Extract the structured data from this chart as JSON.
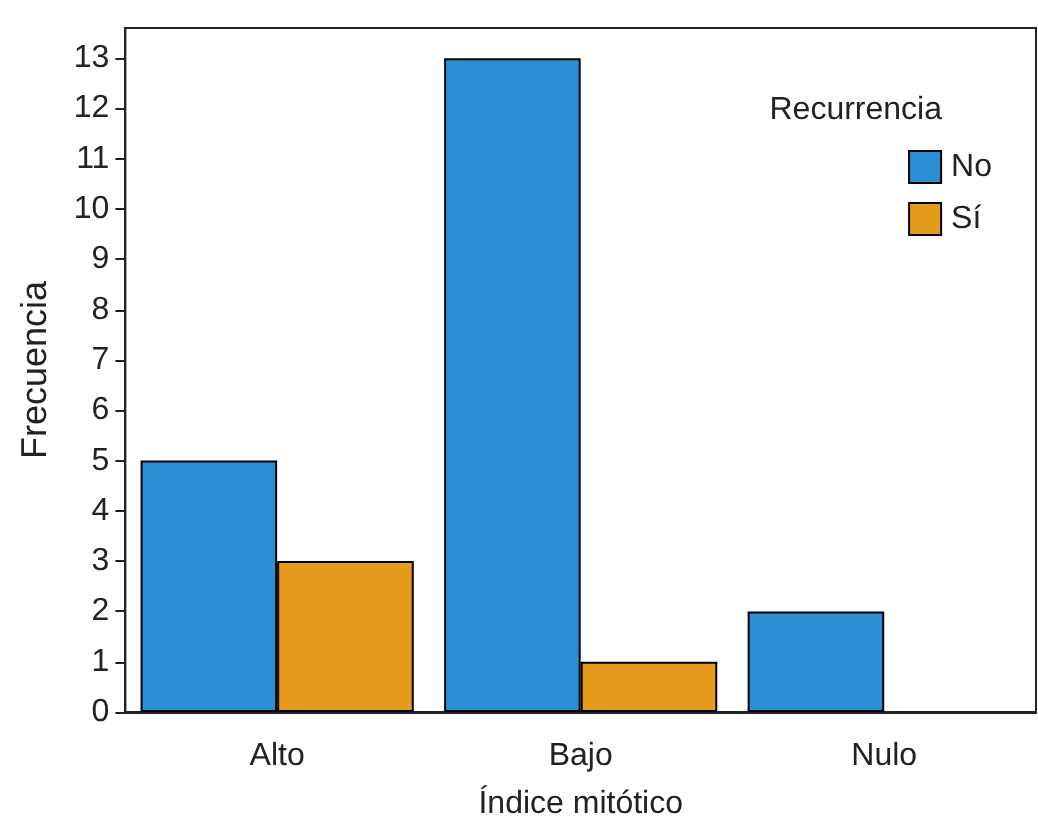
{
  "chart_data": {
    "type": "bar",
    "xlabel": "Índice mitótico",
    "ylabel": "Frecuencia",
    "legend_title": "Recurrencia",
    "categories": [
      "Alto",
      "Bajo",
      "Nulo"
    ],
    "series": [
      {
        "name": "No",
        "color": "#2a8fd2",
        "values": [
          5,
          13,
          2
        ]
      },
      {
        "name": "Sí",
        "color": "#e59b1b",
        "values": [
          3,
          1,
          null
        ]
      }
    ],
    "ylim": [
      0,
      13.6
    ],
    "yticks": [
      0,
      1,
      2,
      3,
      4,
      5,
      6,
      7,
      8,
      9,
      10,
      11,
      12,
      13
    ],
    "grid": false,
    "legend": "top right"
  }
}
